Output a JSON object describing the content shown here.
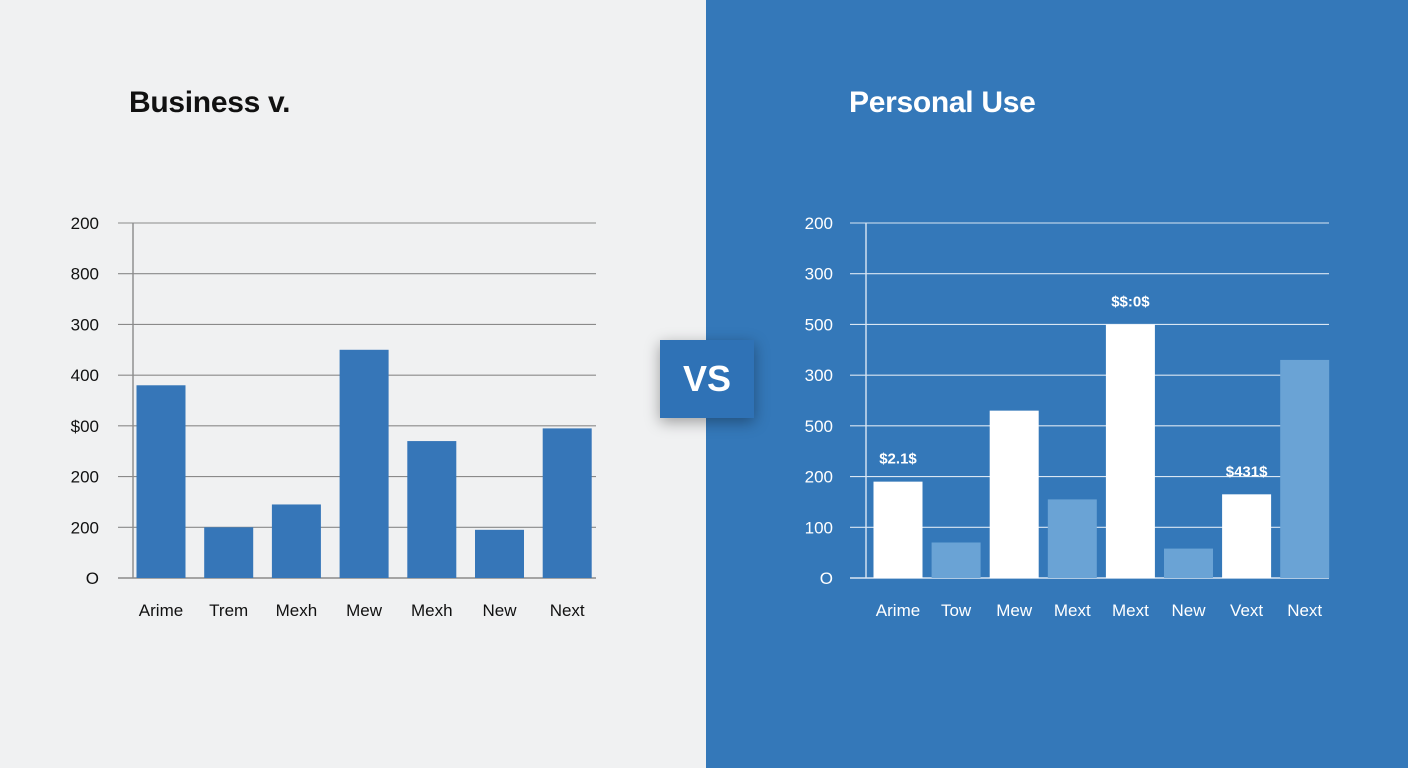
{
  "chart_data": [
    {
      "type": "bar",
      "title": "Business v.",
      "ytick_labels": [
        "200",
        "800",
        "300",
        "400",
        "$00",
        "200",
        "200",
        "O"
      ],
      "categories": [
        "Arime",
        "Trem",
        "Mexh",
        "Mew",
        "Mexh",
        "New",
        "Next"
      ],
      "values": [
        3.8,
        1.0,
        1.45,
        4.5,
        2.7,
        0.95,
        2.95
      ],
      "ylim": [
        0,
        7
      ],
      "grid": true,
      "colors": {
        "background": "#f0f1f2",
        "bar": "#3676b8",
        "text": "#111111",
        "grid": "#8a8a8a"
      }
    },
    {
      "type": "bar",
      "title": "Personal Use",
      "ytick_labels": [
        "200",
        "300",
        "500",
        "300",
        "500",
        "200",
        "100",
        "O"
      ],
      "categories": [
        "Arime",
        "Tow",
        "Mew",
        "Mext",
        "Mext",
        "New",
        "Vext",
        "Next"
      ],
      "values": [
        1.9,
        0.7,
        3.3,
        1.55,
        5.0,
        0.58,
        1.65,
        4.3
      ],
      "bar_styles": [
        "solid",
        "light",
        "solid",
        "light",
        "solid",
        "light",
        "solid",
        "light"
      ],
      "data_labels": [
        "$2.1$",
        "",
        "",
        "",
        "$$:0$",
        "",
        "$431$",
        ""
      ],
      "ylim": [
        0,
        7
      ],
      "grid": true,
      "colors": {
        "background": "#3478b9",
        "bar_solid": "#ffffff",
        "bar_light": "#6aa3d5",
        "text": "#ffffff",
        "grid": "#d9e6f3"
      }
    }
  ],
  "badge": {
    "label": "VS"
  }
}
